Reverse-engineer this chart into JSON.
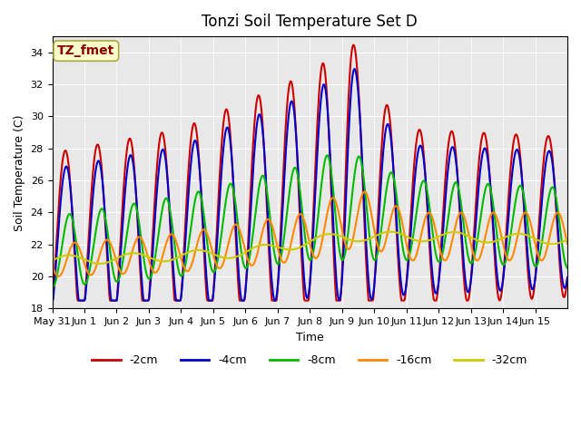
{
  "title": "Tonzi Soil Temperature Set D",
  "xlabel": "Time",
  "ylabel": "Soil Temperature (C)",
  "annotation": "TZ_fmet",
  "ylim": [
    18,
    35
  ],
  "yticks": [
    18,
    20,
    22,
    24,
    26,
    28,
    30,
    32,
    34
  ],
  "bg_color": "#e8e8e8",
  "series": {
    "-2cm": {
      "color": "#cc0000",
      "lw": 1.5
    },
    "-4cm": {
      "color": "#0000cc",
      "lw": 1.5
    },
    "-8cm": {
      "color": "#00bb00",
      "lw": 1.5
    },
    "-16cm": {
      "color": "#ff8800",
      "lw": 1.5
    },
    "-32cm": {
      "color": "#cccc00",
      "lw": 1.5
    }
  },
  "xtick_labels": [
    "May 31",
    "Jun 1",
    "Jun 2",
    "Jun 3",
    "Jun 4",
    "Jun 5",
    "Jun 6",
    "Jun 7",
    "Jun 8",
    "Jun 9",
    "Jun 10",
    "Jun 11",
    "Jun 12",
    "Jun 13",
    "Jun 14",
    "Jun 15"
  ],
  "n_days": 16
}
